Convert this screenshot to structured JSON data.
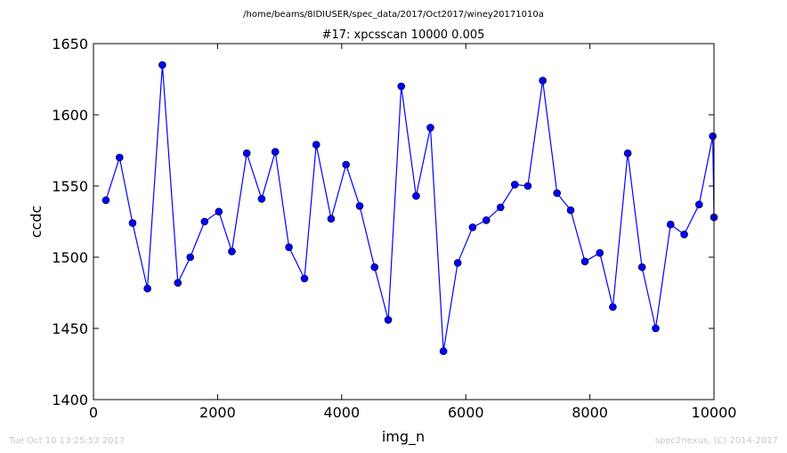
{
  "header": {
    "path": "/home/beams/8IDIUSER/spec_data/2017/Oct2017/winey20171010a"
  },
  "footer": {
    "timestamp": "Tue Oct 10 13:25:53 2017",
    "credit": "spec2nexus, (C) 2014-2017"
  },
  "chart_data": {
    "type": "line",
    "title": "#17: xpcsscan 10000 0.005",
    "xlabel": "img_n",
    "ylabel": "ccdc",
    "xlim": [
      0,
      10000
    ],
    "ylim": [
      1400,
      1650
    ],
    "xticks": [
      0,
      2000,
      4000,
      6000,
      8000,
      10000
    ],
    "yticks": [
      1400,
      1450,
      1500,
      1550,
      1600,
      1650
    ],
    "grid": false,
    "line_color": "#0000ff",
    "marker_color": "#0000ff",
    "series": [
      {
        "x": [
          200,
          420,
          630,
          870,
          1110,
          1360,
          1560,
          1790,
          2020,
          2230,
          2470,
          2710,
          2930,
          3150,
          3400,
          3590,
          3830,
          4070,
          4290,
          4530,
          4750,
          4960,
          5200,
          5430,
          5640,
          5870,
          6110,
          6330,
          6560,
          6790,
          7000,
          7240,
          7470,
          7690,
          7920,
          8160,
          8370,
          8610,
          8840,
          9060,
          9300,
          9520,
          9760,
          9980,
          10000
        ],
        "y": [
          1540,
          1570,
          1524,
          1478,
          1635,
          1482,
          1500,
          1525,
          1532,
          1504,
          1573,
          1541,
          1574,
          1507,
          1485,
          1579,
          1527,
          1565,
          1536,
          1493,
          1456,
          1620,
          1543,
          1591,
          1434,
          1496,
          1521,
          1526,
          1535,
          1551,
          1550,
          1624,
          1545,
          1533,
          1497,
          1503,
          1465,
          1573,
          1493,
          1450,
          1523,
          1516,
          1537,
          1585,
          1528
        ]
      }
    ]
  }
}
